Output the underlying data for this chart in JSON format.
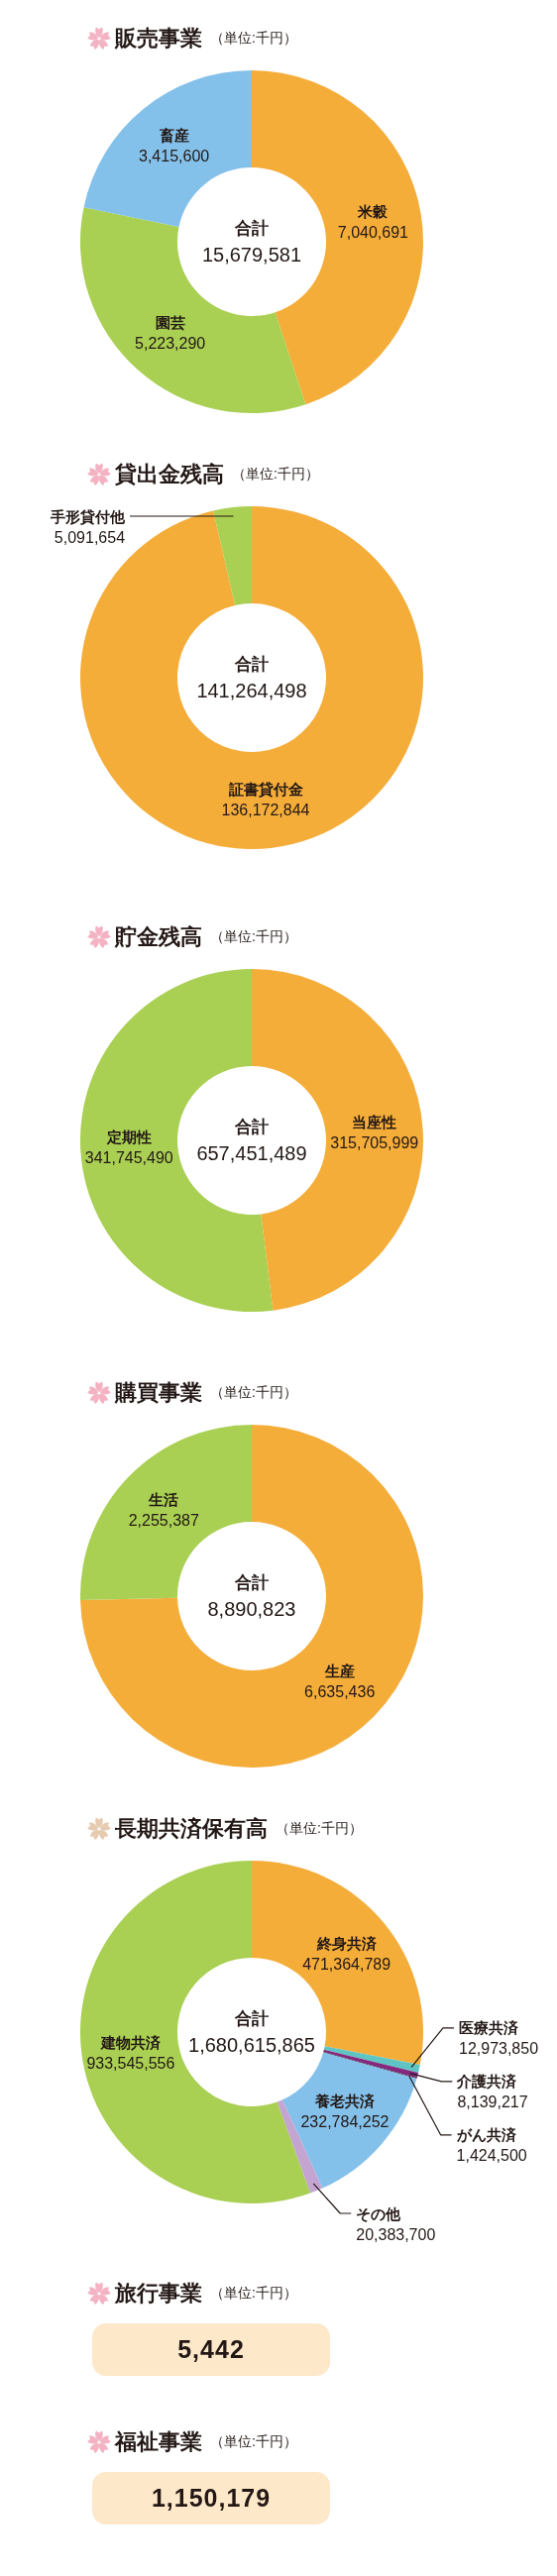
{
  "chart_data": [
    {
      "type": "donut",
      "title": "販売事業",
      "subtitle": "（単位:千円）",
      "categories": [
        "米穀",
        "園芸",
        "畜産"
      ],
      "values": [
        7040691,
        5223290,
        3415600
      ],
      "value_labels": [
        "7,040,691",
        "5,223,290",
        "3,415,600"
      ],
      "colors": [
        "#f5ad3a",
        "#a9cf53",
        "#84c1ea"
      ],
      "annotations": [
        "合計",
        "15,679,581"
      ]
    },
    {
      "type": "donut",
      "title": "貸出金残高",
      "subtitle": "（単位:千円）",
      "categories": [
        "証書貸付金",
        "手形貸付他"
      ],
      "values": [
        136172844,
        5091654
      ],
      "value_labels": [
        "136,172,844",
        "5,091,654"
      ],
      "colors": [
        "#f5ad3a",
        "#a9cf53"
      ],
      "annotations": [
        "合計",
        "141,264,498"
      ]
    },
    {
      "type": "donut",
      "title": "貯金残高",
      "subtitle": "（単位:千円）",
      "categories": [
        "当座性",
        "定期性"
      ],
      "values": [
        315705999,
        341745490
      ],
      "value_labels": [
        "315,705,999",
        "341,745,490"
      ],
      "colors": [
        "#f5ad3a",
        "#a9cf53"
      ],
      "annotations": [
        "合計",
        "657,451,489"
      ]
    },
    {
      "type": "donut",
      "title": "購買事業",
      "subtitle": "（単位:千円）",
      "categories": [
        "生産",
        "生活"
      ],
      "values": [
        6635436,
        2255387
      ],
      "value_labels": [
        "6,635,436",
        "2,255,387"
      ],
      "colors": [
        "#f5ad3a",
        "#a9cf53"
      ],
      "annotations": [
        "合計",
        "8,890,823"
      ]
    },
    {
      "type": "donut",
      "title": "長期共済保有高",
      "subtitle": "（単位:千円）",
      "categories": [
        "終身共済",
        "医療共済",
        "介護共済",
        "がん共済",
        "養老共済",
        "その他",
        "建物共済"
      ],
      "values": [
        471364789,
        12973850,
        8139217,
        1424500,
        232784252,
        20383700,
        933545556
      ],
      "value_labels": [
        "471,364,789",
        "12,973,850",
        "8,139,217",
        "1,424,500",
        "232,784,252",
        "20,383,700",
        "933,545,556"
      ],
      "colors": [
        "#f5ad3a",
        "#5ec4c4",
        "#86287f",
        "#2b2230",
        "#84c1ea",
        "#c4a5d2",
        "#a9cf53"
      ],
      "annotations": [
        "合計",
        "1,680,615,865"
      ]
    },
    {
      "type": "other",
      "title": "旅行事業",
      "subtitle": "（単位:千円）",
      "annotations": [
        "5,442"
      ]
    },
    {
      "type": "other",
      "title": "福祉事業",
      "subtitle": "（単位:千円）",
      "annotations": [
        "1,150,179"
      ]
    }
  ]
}
